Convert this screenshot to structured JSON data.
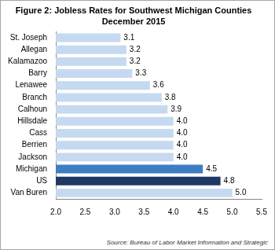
{
  "chart_data": {
    "type": "bar",
    "title": "Figure 2: Jobless Rates for Southwest Michigan Counties",
    "subtitle": "December 2015",
    "orientation": "horizontal",
    "categories": [
      "St. Joseph",
      "Allegan",
      "Kalamazoo",
      "Barry",
      "Lenawee",
      "Branch",
      "Calhoun",
      "Hillsdale",
      "Cass",
      "Berrien",
      "Jackson",
      "Michigan",
      "US",
      "Van Buren"
    ],
    "values": [
      3.1,
      3.2,
      3.2,
      3.3,
      3.6,
      3.8,
      3.9,
      4.0,
      4.0,
      4.0,
      4.0,
      4.5,
      4.8,
      5.0
    ],
    "value_labels": [
      "3.1",
      "3.2",
      "3.2",
      "3.3",
      "3.6",
      "3.8",
      "3.9",
      "4.0",
      "4.0",
      "4.0",
      "4.0",
      "4.5",
      "4.8",
      "5.0"
    ],
    "colors": [
      "#c5d9f1",
      "#c5d9f1",
      "#c5d9f1",
      "#c5d9f1",
      "#c5d9f1",
      "#c5d9f1",
      "#c5d9f1",
      "#c5d9f1",
      "#c5d9f1",
      "#c5d9f1",
      "#c5d9f1",
      "#3c7dc4",
      "#1f3864",
      "#c5d9f1"
    ],
    "data_labels": true,
    "grid": false,
    "xlim": [
      2.0,
      5.5
    ],
    "xticks": [
      {
        "value": 2,
        "label": "2.0"
      },
      2.5,
      {
        "value": 3,
        "label": "3.0"
      },
      3.5,
      {
        "value": 4,
        "label": "4.0"
      },
      4.5,
      {
        "value": 5,
        "label": "5.0"
      },
      5.5
    ],
    "annotations": [
      "Source: Bureau of Labor Market Information and Strategic"
    ]
  }
}
